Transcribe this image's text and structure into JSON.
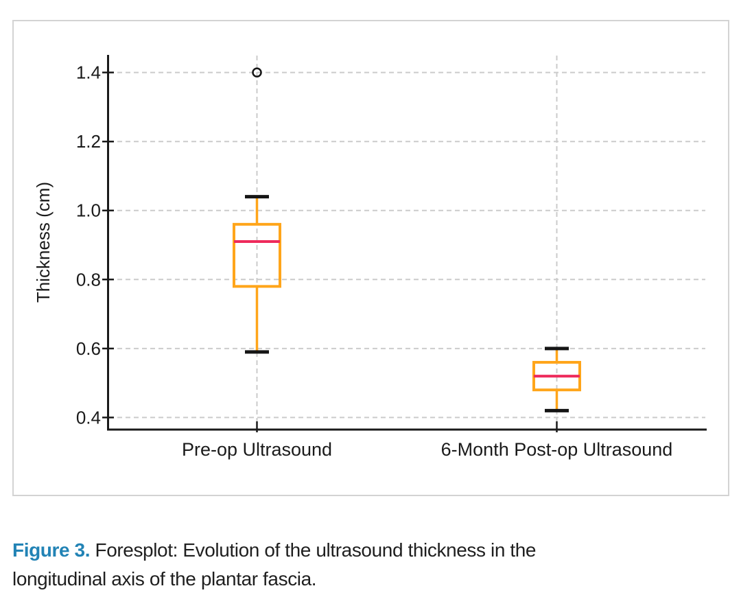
{
  "figure_caption": {
    "label": "Figure 3.",
    "line1": "Foresplot: Evolution of the ultrasound thickness in the",
    "line2": "longitudinal axis of the plantar fascia.",
    "label_color": "#2283b5",
    "text_color": "#1f1f1f"
  },
  "chart_data": {
    "type": "box",
    "title": "",
    "xlabel": "",
    "ylabel": "Thickness (cm)",
    "ylim": [
      0.367,
      1.449
    ],
    "yticks": [
      0.4,
      0.6,
      0.8,
      1.0,
      1.2,
      1.4
    ],
    "ytick_labels": [
      "0.4",
      "0.6",
      "0.8",
      "1.0",
      "1.2",
      "1.4"
    ],
    "grid": "dashed horizontal gridlines at yticks and dashed vertical gridline at each category",
    "legend": "none",
    "categories": [
      "Pre-op Ultrasound",
      "6-Month Post-op Ultrasound"
    ],
    "series": [
      {
        "category": "Pre-op Ultrasound",
        "whisker_low": 0.59,
        "q1": 0.78,
        "median": 0.91,
        "q3": 0.96,
        "whisker_high": 1.04,
        "outliers": [
          1.4
        ]
      },
      {
        "category": "6-Month Post-op Ultrasound",
        "whisker_low": 0.42,
        "q1": 0.48,
        "median": 0.52,
        "q3": 0.56,
        "whisker_high": 0.6,
        "outliers": []
      }
    ],
    "colors": {
      "box_stroke": "#ffa51a",
      "whisker": "#ffa51a",
      "median": "#ee2b5c",
      "cap": "#151515",
      "outlier_stroke": "#151515",
      "grid": "#cbcbcb",
      "axis": "#1a1a1a",
      "text": "#1a1a1a",
      "card_border": "#d3d3d3"
    }
  }
}
